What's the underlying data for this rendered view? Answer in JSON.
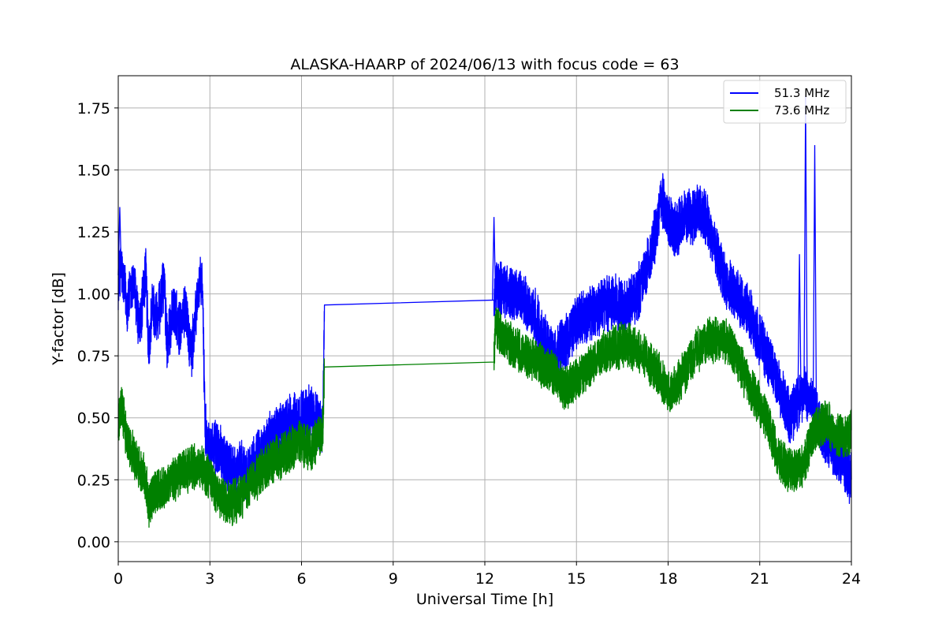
{
  "chart_data": {
    "type": "line",
    "title": "ALASKA-HAARP of 2024/06/13 with focus code = 63",
    "xlabel": "Universal Time [h]",
    "ylabel": "Y-factor [dB]",
    "xlim": [
      0,
      24
    ],
    "ylim": [
      -0.08,
      1.88
    ],
    "xticks": [
      0,
      3,
      6,
      9,
      12,
      15,
      18,
      21,
      24
    ],
    "xtick_labels": [
      "0",
      "3",
      "6",
      "9",
      "12",
      "15",
      "18",
      "21",
      "24"
    ],
    "yticks": [
      0.0,
      0.25,
      0.5,
      0.75,
      1.0,
      1.25,
      1.5,
      1.75
    ],
    "ytick_labels": [
      "0.00",
      "0.25",
      "0.50",
      "0.75",
      "1.00",
      "1.25",
      "1.50",
      "1.75"
    ],
    "grid": true,
    "legend": "top-right",
    "series": [
      {
        "name": "51.3 MHz",
        "color": "#0000ff",
        "noise": 0.06,
        "x": [
          0,
          0.1,
          0.3,
          0.5,
          0.7,
          0.9,
          1.0,
          1.1,
          1.3,
          1.5,
          1.6,
          1.8,
          2.0,
          2.2,
          2.4,
          2.6,
          2.75,
          2.85,
          2.95,
          3.2,
          3.5,
          3.8,
          4.0,
          4.2,
          4.5,
          4.8,
          5.0,
          5.3,
          5.6,
          5.9,
          6.2,
          6.5,
          6.7,
          6.75,
          12.3,
          12.35,
          12.5,
          12.8,
          13.2,
          13.6,
          14.0,
          14.3,
          14.6,
          15.0,
          15.4,
          15.8,
          16.2,
          16.6,
          17.0,
          17.3,
          17.6,
          17.8,
          18.0,
          18.2,
          18.4,
          18.6,
          18.8,
          19.0,
          19.3,
          19.6,
          19.9,
          20.2,
          20.5,
          20.8,
          21.1,
          21.4,
          21.7,
          22.0,
          22.2,
          22.5,
          22.8,
          23.0,
          23.3,
          23.6,
          23.8,
          24.0
        ],
        "y": [
          1.05,
          1.1,
          0.95,
          1.05,
          0.85,
          1.1,
          0.75,
          0.95,
          0.9,
          1.05,
          0.8,
          0.95,
          0.85,
          0.95,
          0.75,
          1.0,
          1.05,
          0.45,
          0.4,
          0.38,
          0.33,
          0.28,
          0.3,
          0.27,
          0.33,
          0.38,
          0.42,
          0.45,
          0.48,
          0.5,
          0.52,
          0.5,
          0.45,
          0.955,
          0.975,
          1.02,
          1.03,
          1.0,
          0.98,
          0.92,
          0.8,
          0.75,
          0.8,
          0.88,
          0.92,
          0.95,
          0.97,
          0.95,
          1.0,
          1.1,
          1.25,
          1.38,
          1.3,
          1.25,
          1.28,
          1.32,
          1.3,
          1.35,
          1.28,
          1.15,
          1.05,
          1.0,
          0.95,
          0.88,
          0.8,
          0.7,
          0.6,
          0.5,
          0.55,
          0.6,
          0.55,
          0.45,
          0.4,
          0.35,
          0.3,
          0.25
        ],
        "spikes": [
          {
            "x": 0.05,
            "y": 1.35
          },
          {
            "x": 12.3,
            "y": 1.31
          },
          {
            "x": 22.3,
            "y": 1.16
          },
          {
            "x": 22.5,
            "y": 1.8
          },
          {
            "x": 22.8,
            "y": 1.6
          }
        ]
      },
      {
        "name": "73.6 MHz",
        "color": "#008000",
        "noise": 0.05,
        "x": [
          0,
          0.1,
          0.3,
          0.5,
          0.7,
          0.9,
          1.0,
          1.2,
          1.5,
          1.8,
          2.1,
          2.4,
          2.7,
          3.0,
          3.3,
          3.6,
          3.9,
          4.2,
          4.5,
          4.8,
          5.1,
          5.4,
          5.7,
          6.0,
          6.3,
          6.6,
          6.7,
          6.75,
          12.3,
          12.35,
          12.6,
          13.0,
          13.4,
          13.8,
          14.2,
          14.6,
          15.0,
          15.4,
          15.8,
          16.2,
          16.6,
          17.0,
          17.4,
          17.8,
          18.1,
          18.4,
          18.8,
          19.2,
          19.6,
          20.0,
          20.4,
          20.8,
          21.2,
          21.6,
          22.0,
          22.4,
          22.8,
          23.2,
          23.6,
          24.0
        ],
        "y": [
          0.45,
          0.55,
          0.4,
          0.35,
          0.3,
          0.25,
          0.15,
          0.2,
          0.22,
          0.25,
          0.28,
          0.3,
          0.3,
          0.25,
          0.18,
          0.15,
          0.17,
          0.2,
          0.25,
          0.3,
          0.33,
          0.35,
          0.38,
          0.4,
          0.38,
          0.42,
          0.45,
          0.705,
          0.725,
          0.88,
          0.82,
          0.78,
          0.75,
          0.72,
          0.68,
          0.62,
          0.65,
          0.7,
          0.75,
          0.78,
          0.8,
          0.78,
          0.72,
          0.65,
          0.6,
          0.65,
          0.75,
          0.8,
          0.82,
          0.8,
          0.7,
          0.6,
          0.5,
          0.35,
          0.28,
          0.3,
          0.45,
          0.48,
          0.42,
          0.45
        ],
        "spikes": []
      }
    ]
  }
}
